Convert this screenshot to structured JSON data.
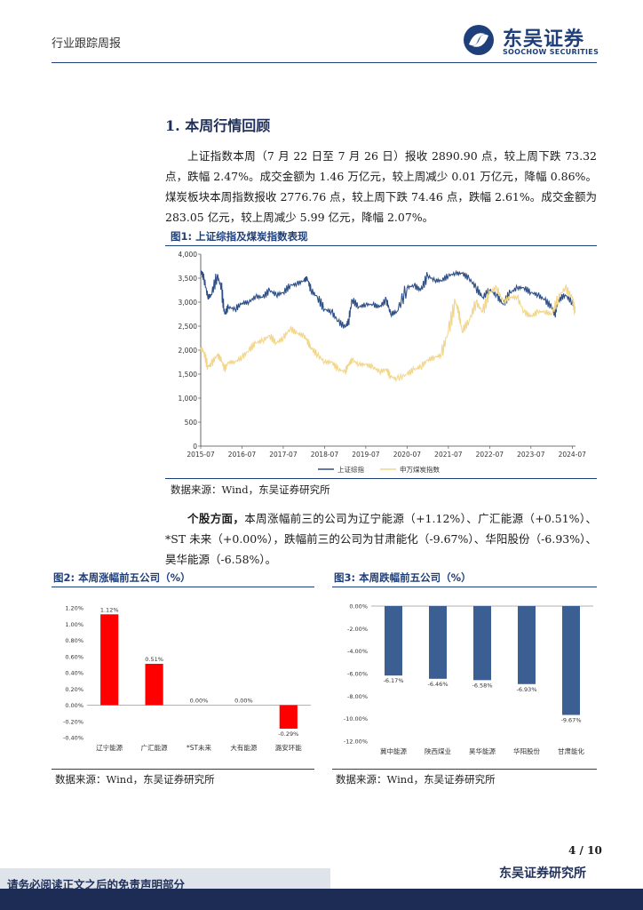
{
  "header": {
    "report_type": "行业跟踪周报",
    "logo_cn": "东吴证券",
    "logo_en": "SOOCHOW SECURITIES"
  },
  "section": {
    "title": "1.  本周行情回顾",
    "paragraph1": "上证指数本周（7 月 22 日至 7 月 26 日）报收 2890.90 点，较上周下跌 73.32 点，跌幅 2.47%。成交金额为 1.46 万亿元，较上周减少 0.01 万亿元，降幅 0.86%。煤炭板块本周指数报收 2776.76 点，较上周下跌 74.46 点，跌幅 2.61%。成交金额为 283.05 亿元，较上周减少 5.99 亿元，降幅 2.07%。",
    "paragraph2_lead": "个股方面，",
    "paragraph2": "本周涨幅前三的公司为辽宁能源（+1.12%）、广汇能源（+0.51%）、*ST 未来（+0.00%），跌幅前三的公司为甘肃能化（-9.67%）、华阳股份（-6.93%）、昊华能源（-6.58%）。"
  },
  "fig1": {
    "title": "图1:  上证综指及煤炭指数表现",
    "source": "数据来源：Wind，东吴证券研究所"
  },
  "fig2": {
    "title": "图2:  本周涨幅前五公司（%）",
    "source": "数据来源：Wind，东吴证券研究所"
  },
  "fig3": {
    "title": "图3:  本周跌幅前五公司（%）",
    "source": "数据来源：Wind，东吴证券研究所"
  },
  "footer": {
    "page": "4 / 10",
    "institute": "东吴证券研究所",
    "disclaimer": "请务必阅读正文之后的免责声明部分"
  },
  "chart_data": [
    {
      "type": "line",
      "x_ticks": [
        "2015-07",
        "2016-07",
        "2017-07",
        "2018-07",
        "2019-07",
        "2020-07",
        "2021-07",
        "2022-07",
        "2023-07",
        "2024-07"
      ],
      "ylim": [
        0,
        4000
      ],
      "y_ticks": [
        "0",
        "500",
        "1,000",
        "1,500",
        "2,000",
        "2,500",
        "3,000",
        "3,500",
        "4,000"
      ],
      "grid": false,
      "legend_position": "bottom",
      "series": [
        {
          "name": "上证综指",
          "color": "#2e4f86",
          "x": [
            2015.5,
            2015.58,
            2015.67,
            2015.75,
            2015.9,
            2016.0,
            2016.08,
            2016.17,
            2016.33,
            2016.5,
            2016.67,
            2016.83,
            2017.0,
            2017.17,
            2017.33,
            2017.5,
            2017.67,
            2017.83,
            2018.0,
            2018.08,
            2018.17,
            2018.33,
            2018.5,
            2018.67,
            2018.83,
            2019.0,
            2019.08,
            2019.17,
            2019.33,
            2019.5,
            2019.67,
            2019.83,
            2020.0,
            2020.1,
            2020.25,
            2020.5,
            2020.67,
            2020.83,
            2021.0,
            2021.17,
            2021.33,
            2021.5,
            2021.67,
            2021.83,
            2022.0,
            2022.17,
            2022.33,
            2022.5,
            2022.67,
            2022.83,
            2023.0,
            2023.17,
            2023.33,
            2023.5,
            2023.67,
            2023.83,
            2024.0,
            2024.08,
            2024.17,
            2024.33,
            2024.5,
            2024.57
          ],
          "values": [
            3650,
            3500,
            3100,
            3150,
            3550,
            3300,
            2750,
            2900,
            2850,
            2980,
            3000,
            3120,
            3100,
            3250,
            3150,
            3200,
            3350,
            3380,
            3450,
            3500,
            3250,
            3100,
            2850,
            2800,
            2600,
            2480,
            2600,
            3050,
            2900,
            2950,
            2950,
            2900,
            3050,
            2750,
            2800,
            3300,
            3350,
            3250,
            3550,
            3450,
            3450,
            3550,
            3600,
            3600,
            3500,
            3300,
            3100,
            3250,
            3150,
            2950,
            3200,
            3300,
            3300,
            3200,
            3150,
            3050,
            2900,
            2750,
            3050,
            3150,
            3000,
            2890
          ]
        },
        {
          "name": "申万煤炭指数",
          "color": "#f2d68a",
          "x": [
            2015.5,
            2015.58,
            2015.67,
            2015.75,
            2015.9,
            2016.0,
            2016.08,
            2016.17,
            2016.33,
            2016.5,
            2016.67,
            2016.83,
            2017.0,
            2017.17,
            2017.33,
            2017.5,
            2017.67,
            2017.83,
            2018.0,
            2018.08,
            2018.17,
            2018.33,
            2018.5,
            2018.67,
            2018.83,
            2019.0,
            2019.08,
            2019.17,
            2019.33,
            2019.5,
            2019.67,
            2019.83,
            2020.0,
            2020.1,
            2020.25,
            2020.5,
            2020.67,
            2020.83,
            2021.0,
            2021.17,
            2021.33,
            2021.5,
            2021.67,
            2021.75,
            2021.83,
            2022.0,
            2022.17,
            2022.33,
            2022.5,
            2022.67,
            2022.83,
            2023.0,
            2023.17,
            2023.33,
            2023.5,
            2023.67,
            2023.83,
            2024.0,
            2024.17,
            2024.33,
            2024.5,
            2024.57
          ],
          "values": [
            2050,
            1950,
            1650,
            1700,
            1900,
            1800,
            1600,
            1750,
            1750,
            1850,
            2000,
            2150,
            2200,
            2300,
            2150,
            2250,
            2450,
            2350,
            2300,
            2200,
            2050,
            1900,
            1750,
            1750,
            1600,
            1550,
            1700,
            1800,
            1700,
            1700,
            1650,
            1550,
            1600,
            1450,
            1400,
            1500,
            1600,
            1650,
            1800,
            1850,
            1900,
            2400,
            3000,
            2800,
            2400,
            2600,
            3000,
            2800,
            3200,
            3300,
            3000,
            3100,
            3100,
            2800,
            2700,
            2800,
            2800,
            2750,
            3100,
            3300,
            3100,
            2777
          ]
        }
      ]
    },
    {
      "type": "bar",
      "categories": [
        "辽宁能源",
        "广汇能源",
        "*ST未来",
        "大有能源",
        "潞安环能"
      ],
      "values": [
        1.12,
        0.51,
        0.0,
        0.0,
        -0.29
      ],
      "labels": [
        "1.12%",
        "0.51%",
        "0.00%",
        "0.00%",
        "-0.29%"
      ],
      "ylim": [
        -0.4,
        1.2
      ],
      "y_ticks": [
        "1.20%",
        "1.00%",
        "0.80%",
        "0.60%",
        "0.40%",
        "0.20%",
        "0.00%",
        "-0.20%",
        "-0.40%"
      ],
      "color": "#ff0000",
      "grid": false
    },
    {
      "type": "bar",
      "categories": [
        "冀中能源",
        "陕西煤业",
        "昊华能源",
        "华阳股份",
        "甘肃能化"
      ],
      "values": [
        -6.17,
        -6.46,
        -6.58,
        -6.93,
        -9.67
      ],
      "labels": [
        "-6.17%",
        "-6.46%",
        "-6.58%",
        "-6.93%",
        "-9.67%"
      ],
      "ylim": [
        -12,
        0
      ],
      "y_ticks": [
        "0.00%",
        "-2.00%",
        "-4.00%",
        "-6.00%",
        "-8.00%",
        "-10.00%",
        "-12.00%"
      ],
      "color": "#3b5e93",
      "grid": false
    }
  ]
}
